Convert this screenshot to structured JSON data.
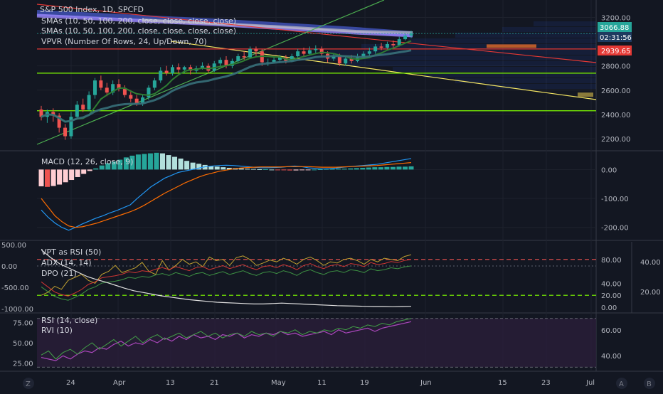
{
  "header": {
    "symbol": "S&P 500 Index, 1D, SPCFD",
    "indicators": [
      "SMAs (10, 50, 100, 200, close, close, close, close)",
      "SMAs (10, 50, 100, 200, close, close, close, close)",
      "VPVR (Number Of Rows, 24, Up/Down, 70)"
    ]
  },
  "price_badges": {
    "last": "3066.88",
    "countdown": "02:31:56",
    "level": "2939.65"
  },
  "panes": {
    "macd_label": "MACD (12, 26, close, 9)",
    "vpt_labels": [
      "VPT as RSI (50)",
      "ADX (14, 14)",
      "DPO (21)"
    ],
    "rsi_labels": [
      "RSI (14, close)",
      "RVI (10)"
    ]
  },
  "x_axis_labels": [
    "24",
    "Apr",
    "13",
    "21",
    "May",
    "11",
    "19",
    "Jun",
    "15",
    "23",
    "Jul"
  ],
  "bottom_icons": [
    "Z",
    "A",
    "B"
  ],
  "colors": {
    "bg": "#131722",
    "up": "#26a69a",
    "down": "#ef5350",
    "green_line": "#4caf50",
    "red_line": "#e53935",
    "yellow_line": "#f5e663",
    "rsi_band": "#2a1e3a"
  },
  "chart_data": [
    {
      "type": "candlestick",
      "name": "price",
      "y_ticks": [
        "3200.00",
        "2800.00",
        "2600.00",
        "2400.00",
        "2200.00"
      ],
      "ylim": [
        2100,
        3320
      ],
      "candles": [
        [
          2440,
          2380,
          2470,
          2350
        ],
        [
          2380,
          2420,
          2440,
          2330
        ],
        [
          2420,
          2390,
          2450,
          2340
        ],
        [
          2390,
          2290,
          2410,
          2250
        ],
        [
          2290,
          2220,
          2320,
          2190
        ],
        [
          2220,
          2380,
          2420,
          2200
        ],
        [
          2380,
          2480,
          2510,
          2360
        ],
        [
          2480,
          2440,
          2530,
          2420
        ],
        [
          2440,
          2560,
          2590,
          2430
        ],
        [
          2560,
          2680,
          2700,
          2530
        ],
        [
          2680,
          2620,
          2720,
          2600
        ],
        [
          2620,
          2580,
          2660,
          2550
        ],
        [
          2580,
          2650,
          2680,
          2560
        ],
        [
          2650,
          2610,
          2690,
          2590
        ],
        [
          2610,
          2560,
          2640,
          2540
        ],
        [
          2560,
          2530,
          2600,
          2500
        ],
        [
          2530,
          2490,
          2560,
          2470
        ],
        [
          2490,
          2540,
          2560,
          2470
        ],
        [
          2540,
          2620,
          2640,
          2520
        ],
        [
          2620,
          2680,
          2700,
          2600
        ],
        [
          2680,
          2760,
          2790,
          2660
        ],
        [
          2760,
          2740,
          2800,
          2720
        ],
        [
          2740,
          2790,
          2810,
          2720
        ],
        [
          2790,
          2770,
          2820,
          2740
        ],
        [
          2770,
          2790,
          2800,
          2740
        ],
        [
          2790,
          2760,
          2810,
          2730
        ],
        [
          2760,
          2780,
          2800,
          2740
        ],
        [
          2780,
          2800,
          2830,
          2770
        ],
        [
          2800,
          2760,
          2820,
          2740
        ],
        [
          2760,
          2820,
          2840,
          2750
        ],
        [
          2820,
          2850,
          2870,
          2800
        ],
        [
          2850,
          2800,
          2880,
          2780
        ],
        [
          2800,
          2840,
          2860,
          2780
        ],
        [
          2840,
          2880,
          2900,
          2820
        ],
        [
          2880,
          2870,
          2920,
          2850
        ],
        [
          2870,
          2940,
          2960,
          2860
        ],
        [
          2940,
          2920,
          2960,
          2880
        ],
        [
          2920,
          2830,
          2940,
          2800
        ],
        [
          2830,
          2830,
          2860,
          2800
        ],
        [
          2830,
          2850,
          2870,
          2820
        ],
        [
          2850,
          2870,
          2890,
          2830
        ],
        [
          2870,
          2840,
          2890,
          2820
        ],
        [
          2840,
          2880,
          2900,
          2830
        ],
        [
          2880,
          2920,
          2940,
          2860
        ],
        [
          2920,
          2900,
          2950,
          2880
        ],
        [
          2900,
          2930,
          2960,
          2890
        ],
        [
          2930,
          2940,
          2970,
          2900
        ],
        [
          2940,
          2900,
          2960,
          2880
        ],
        [
          2900,
          2860,
          2920,
          2830
        ],
        [
          2860,
          2880,
          2900,
          2840
        ],
        [
          2880,
          2820,
          2900,
          2800
        ],
        [
          2820,
          2860,
          2880,
          2800
        ],
        [
          2860,
          2840,
          2890,
          2820
        ],
        [
          2840,
          2870,
          2900,
          2830
        ],
        [
          2870,
          2900,
          2920,
          2860
        ],
        [
          2900,
          2920,
          2950,
          2880
        ],
        [
          2920,
          2960,
          2980,
          2900
        ],
        [
          2960,
          2950,
          2990,
          2930
        ],
        [
          2950,
          2980,
          3000,
          2940
        ],
        [
          2980,
          2970,
          3010,
          2950
        ],
        [
          2970,
          3020,
          3040,
          2960
        ],
        [
          3020,
          3050,
          3070,
          3010
        ],
        [
          3050,
          3067,
          3090,
          3030
        ]
      ],
      "horizontal_lines": [
        {
          "value": 2939.65,
          "color": "#e53935"
        },
        {
          "value": 2740,
          "color": "#7fff00"
        },
        {
          "value": 2430,
          "color": "#7fff00"
        },
        {
          "value": 3066.88,
          "color": "#26a69a"
        }
      ]
    },
    {
      "type": "macd",
      "y_ticks": [
        "0.00",
        "-100.00",
        "-200.00"
      ],
      "ylim": [
        -245,
        60
      ],
      "histogram": [
        -58,
        -60,
        -57,
        -52,
        -44,
        -36,
        -26,
        -15,
        -5,
        4,
        14,
        22,
        28,
        34,
        42,
        48,
        52,
        54,
        56,
        58,
        56,
        50,
        44,
        38,
        30,
        24,
        20,
        16,
        12,
        10,
        8,
        6,
        5,
        4,
        3,
        2,
        1,
        1,
        0,
        -1,
        -2,
        -3,
        -3,
        -2,
        -1,
        0,
        1,
        2,
        2,
        3,
        3,
        4,
        5,
        6,
        7,
        8,
        8,
        9,
        9,
        10,
        10,
        11
      ],
      "macd": [
        -140,
        -165,
        -185,
        -200,
        -210,
        -200,
        -188,
        -178,
        -168,
        -160,
        -150,
        -142,
        -132,
        -122,
        -100,
        -80,
        -60,
        -45,
        -30,
        -20,
        -10,
        -5,
        0,
        5,
        10,
        12,
        14,
        15,
        14,
        12,
        10,
        8,
        6,
        6,
        7,
        8,
        10,
        12,
        10,
        6,
        4,
        2,
        3,
        5,
        8,
        10,
        12,
        14,
        16,
        18,
        22,
        26,
        30,
        34,
        38
      ],
      "signal": [
        -100,
        -130,
        -160,
        -180,
        -195,
        -200,
        -198,
        -192,
        -186,
        -178,
        -170,
        -162,
        -154,
        -146,
        -136,
        -124,
        -110,
        -96,
        -82,
        -70,
        -58,
        -46,
        -36,
        -26,
        -18,
        -12,
        -6,
        -2,
        2,
        5,
        7,
        8,
        9,
        9,
        9,
        9,
        10,
        10,
        10,
        10,
        9,
        8,
        8,
        8,
        9,
        10,
        11,
        12,
        13,
        14,
        16,
        18,
        20,
        22,
        24
      ]
    },
    {
      "type": "line",
      "y_ticks_left": [
        "500.00",
        "0.00",
        "-500.00",
        "-1000.00"
      ],
      "y_ticks_right_inner": [
        "80.00",
        "40.00",
        "20.00",
        "0.00"
      ],
      "y_ticks_right_outer": [
        "40.00",
        "20.00"
      ],
      "ylim": [
        -1100,
        500
      ],
      "vpt_rsi": [
        20,
        25,
        35,
        30,
        45,
        50,
        55,
        45,
        40,
        55,
        60,
        70,
        58,
        62,
        66,
        75,
        60,
        55,
        78,
        62,
        70,
        80,
        72,
        76,
        68,
        84,
        78,
        80,
        70,
        83,
        86,
        80,
        70,
        74,
        79,
        76,
        82,
        78,
        72,
        80,
        84,
        78,
        70,
        76,
        74,
        80,
        82,
        78,
        72,
        80,
        76,
        82,
        80,
        78,
        85,
        88
      ],
      "adx": [
        50,
        40,
        30,
        25,
        22,
        28,
        35,
        45,
        50,
        58,
        60,
        62,
        65,
        70,
        68,
        72,
        70,
        75,
        78,
        74,
        80,
        76,
        72,
        78,
        80,
        74,
        78,
        82,
        76,
        80,
        84,
        78,
        74,
        80,
        82,
        78,
        84,
        80,
        74,
        82,
        86,
        80,
        76,
        82,
        84,
        80,
        86,
        84,
        80,
        88,
        84,
        86,
        90,
        88,
        92,
        94
      ],
      "dpo": [
        380,
        200,
        50,
        -50,
        -150,
        -250,
        -320,
        -380,
        -450,
        -520,
        -580,
        -620,
        -660,
        -700,
        -730,
        -760,
        -790,
        -810,
        -830,
        -850,
        -860,
        -870,
        -880,
        -890,
        -890,
        -880,
        -870,
        -880,
        -890,
        -900,
        -910,
        -920,
        -930,
        -935,
        -940,
        -945,
        -950,
        -950,
        -955,
        -950,
        -945
      ],
      "dashed_levels": [
        80,
        20
      ]
    },
    {
      "type": "line",
      "y_ticks_left": [
        "75.00",
        "50.00",
        "25.00"
      ],
      "y_ticks_right": [
        "60.00",
        "40.00"
      ],
      "ylim": [
        15,
        85
      ],
      "rsi": [
        32,
        30,
        28,
        34,
        30,
        36,
        40,
        38,
        44,
        42,
        48,
        52,
        46,
        50,
        48,
        54,
        50,
        56,
        52,
        58,
        54,
        60,
        56,
        58,
        54,
        60,
        58,
        62,
        56,
        60,
        58,
        62,
        60,
        64,
        60,
        62,
        58,
        60,
        62,
        64,
        60,
        66,
        62,
        64,
        66,
        68,
        64,
        68,
        70,
        72,
        74,
        76
      ],
      "rvi": [
        35,
        40,
        30,
        38,
        42,
        36,
        44,
        50,
        42,
        48,
        54,
        46,
        52,
        58,
        50,
        56,
        60,
        54,
        58,
        62,
        56,
        60,
        64,
        58,
        62,
        56,
        60,
        62,
        58,
        64,
        60,
        62,
        58,
        64,
        62,
        66,
        60,
        64,
        62,
        66,
        64,
        68,
        66,
        70,
        68,
        72,
        70,
        74,
        72,
        76,
        78,
        80
      ],
      "dashed_levels": [
        70,
        30
      ]
    }
  ]
}
